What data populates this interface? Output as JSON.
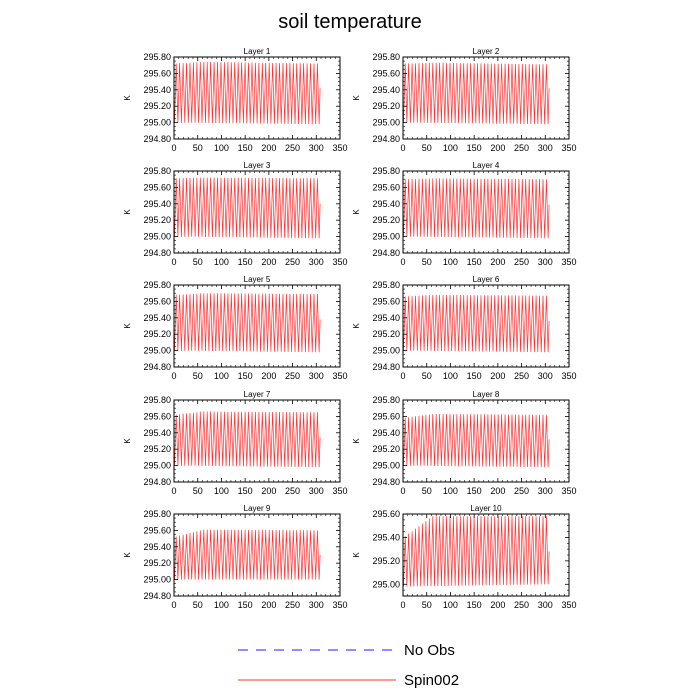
{
  "title": "soil temperature",
  "chart_data": {
    "type": "line",
    "title": "soil temperature",
    "xlabel": "",
    "ylabel": "K",
    "xlim": [
      0,
      350
    ],
    "xticks": [
      0,
      50,
      100,
      150,
      200,
      250,
      300,
      350
    ],
    "xtick_labels": [
      "0",
      "50",
      "100",
      "150",
      "200",
      "250",
      "300",
      "350"
    ],
    "series_names": [
      "No Obs",
      "Spin002"
    ],
    "legend": [
      {
        "name": "No Obs",
        "color": "#1f1fff",
        "style": "dashed"
      },
      {
        "name": "Spin002",
        "color": "#ff3030",
        "style": "solid"
      }
    ],
    "panels": [
      {
        "title": "Layer 1",
        "ylabel": "K",
        "ylim": [
          294.8,
          295.8
        ],
        "yticks": [
          294.8,
          295.0,
          295.2,
          295.4,
          295.6,
          295.8
        ],
        "ytick_labels": [
          "294.80",
          "295.00",
          "295.20",
          "295.40",
          "295.60",
          "295.80"
        ],
        "x_start": 1,
        "x_end": 308,
        "cycles": 42,
        "max_start": 295.72,
        "max_mid": 295.74,
        "max_end": 295.72,
        "min_start": 295.0,
        "min_end": 294.98,
        "last_value": 295.42
      },
      {
        "title": "Layer 2",
        "ylabel": "K",
        "ylim": [
          294.8,
          295.8
        ],
        "yticks": [
          294.8,
          295.0,
          295.2,
          295.4,
          295.6,
          295.8
        ],
        "ytick_labels": [
          "294.80",
          "295.00",
          "295.20",
          "295.40",
          "295.60",
          "295.80"
        ],
        "x_start": 1,
        "x_end": 308,
        "cycles": 42,
        "max_start": 295.72,
        "max_mid": 295.73,
        "max_end": 295.71,
        "min_start": 295.0,
        "min_end": 294.98,
        "last_value": 295.42
      },
      {
        "title": "Layer 3",
        "ylabel": "K",
        "ylim": [
          294.8,
          295.8
        ],
        "yticks": [
          294.8,
          295.0,
          295.2,
          295.4,
          295.6,
          295.8
        ],
        "ytick_labels": [
          "294.80",
          "295.00",
          "295.20",
          "295.40",
          "295.60",
          "295.80"
        ],
        "x_start": 1,
        "x_end": 308,
        "cycles": 42,
        "max_start": 295.71,
        "max_mid": 295.72,
        "max_end": 295.71,
        "min_start": 295.0,
        "min_end": 294.98,
        "last_value": 295.4
      },
      {
        "title": "Layer 4",
        "ylabel": "K",
        "ylim": [
          294.8,
          295.8
        ],
        "yticks": [
          294.8,
          295.0,
          295.2,
          295.4,
          295.6,
          295.8
        ],
        "ytick_labels": [
          "294.80",
          "295.00",
          "295.20",
          "295.40",
          "295.60",
          "295.80"
        ],
        "x_start": 1,
        "x_end": 308,
        "cycles": 42,
        "max_start": 295.7,
        "max_mid": 295.71,
        "max_end": 295.7,
        "min_start": 295.0,
        "min_end": 294.98,
        "last_value": 295.39
      },
      {
        "title": "Layer 5",
        "ylabel": "K",
        "ylim": [
          294.8,
          295.8
        ],
        "yticks": [
          294.8,
          295.0,
          295.2,
          295.4,
          295.6,
          295.8
        ],
        "ytick_labels": [
          "294.80",
          "295.00",
          "295.20",
          "295.40",
          "295.60",
          "295.80"
        ],
        "x_start": 1,
        "x_end": 308,
        "cycles": 42,
        "max_start": 295.68,
        "max_mid": 295.7,
        "max_end": 295.69,
        "min_start": 295.0,
        "min_end": 294.98,
        "last_value": 295.38
      },
      {
        "title": "Layer 6",
        "ylabel": "K",
        "ylim": [
          294.8,
          295.8
        ],
        "yticks": [
          294.8,
          295.0,
          295.2,
          295.4,
          295.6,
          295.8
        ],
        "ytick_labels": [
          "294.80",
          "295.00",
          "295.20",
          "295.40",
          "295.60",
          "295.80"
        ],
        "x_start": 1,
        "x_end": 308,
        "cycles": 42,
        "max_start": 295.66,
        "max_mid": 295.68,
        "max_end": 295.67,
        "min_start": 295.0,
        "min_end": 294.98,
        "last_value": 295.36
      },
      {
        "title": "Layer 7",
        "ylabel": "K",
        "ylim": [
          294.8,
          295.8
        ],
        "yticks": [
          294.8,
          295.0,
          295.2,
          295.4,
          295.6,
          295.8
        ],
        "ytick_labels": [
          "294.80",
          "295.00",
          "295.20",
          "295.40",
          "295.60",
          "295.80"
        ],
        "x_start": 1,
        "x_end": 308,
        "cycles": 42,
        "max_start": 295.62,
        "max_mid": 295.66,
        "max_end": 295.65,
        "min_start": 295.0,
        "min_end": 294.98,
        "last_value": 295.34
      },
      {
        "title": "Layer 8",
        "ylabel": "K",
        "ylim": [
          294.8,
          295.8
        ],
        "yticks": [
          294.8,
          295.0,
          295.2,
          295.4,
          295.6,
          295.8
        ],
        "ytick_labels": [
          "294.80",
          "295.00",
          "295.20",
          "295.40",
          "295.60",
          "295.80"
        ],
        "x_start": 1,
        "x_end": 308,
        "cycles": 42,
        "max_start": 295.58,
        "max_mid": 295.63,
        "max_end": 295.62,
        "min_start": 295.0,
        "min_end": 294.98,
        "last_value": 295.32
      },
      {
        "title": "Layer 9",
        "ylabel": "K",
        "ylim": [
          294.8,
          295.8
        ],
        "yticks": [
          294.8,
          295.0,
          295.2,
          295.4,
          295.6,
          295.8
        ],
        "ytick_labels": [
          "294.80",
          "295.00",
          "295.20",
          "295.40",
          "295.60",
          "295.80"
        ],
        "x_start": 1,
        "x_end": 308,
        "cycles": 42,
        "max_start": 295.52,
        "max_mid": 295.61,
        "max_end": 295.6,
        "min_start": 295.0,
        "min_end": 295.0,
        "last_value": 295.3
      },
      {
        "title": "Layer 10",
        "ylabel": "K",
        "ylim": [
          294.9,
          295.6
        ],
        "yticks": [
          295.0,
          295.2,
          295.4,
          295.6
        ],
        "ytick_labels": [
          "295.00",
          "295.20",
          "295.40",
          "295.60"
        ],
        "x_start": 1,
        "x_end": 308,
        "cycles": 42,
        "max_start": 295.4,
        "max_mid": 295.58,
        "max_end": 295.58,
        "min_start": 294.98,
        "min_end": 295.0,
        "last_value": 295.28
      }
    ]
  }
}
